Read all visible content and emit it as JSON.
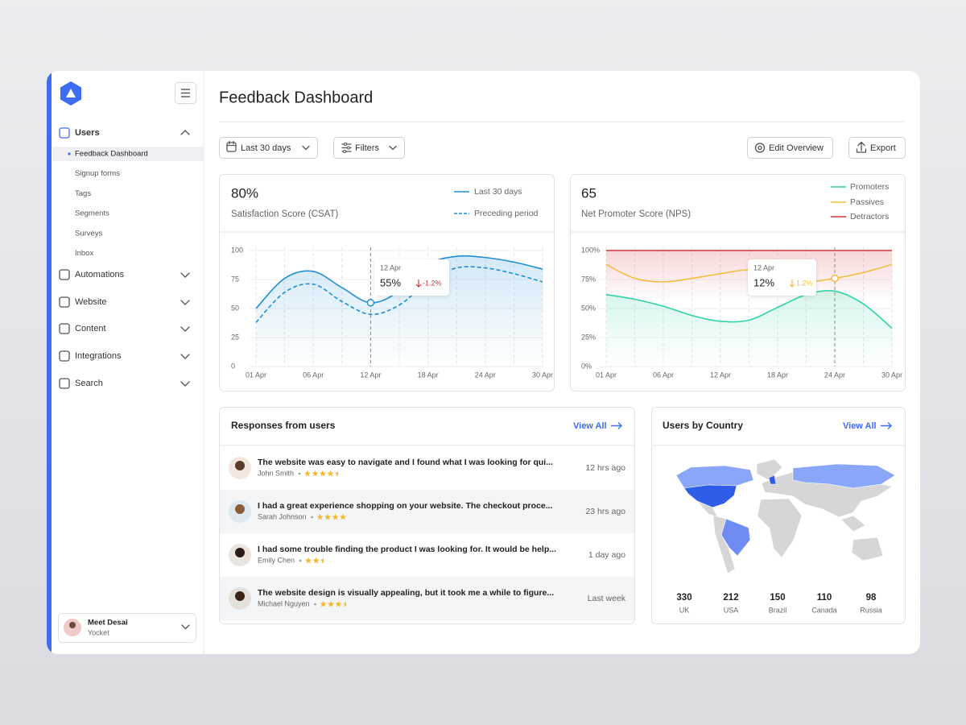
{
  "sidebar": {
    "nav": [
      {
        "label": "Users",
        "children": [
          "Feedback Dashboard",
          "Signup forms",
          "Tags",
          "Segments",
          "Surveys",
          "Inbox"
        ]
      },
      {
        "label": "Automations"
      },
      {
        "label": "Website"
      },
      {
        "label": "Content"
      },
      {
        "label": "Integrations"
      },
      {
        "label": "Search"
      }
    ],
    "user": {
      "name": "Meet Desai",
      "org": "Yocket"
    }
  },
  "header": {
    "title": "Feedback Dashboard"
  },
  "toolbar": {
    "date_range": "Last 30 days",
    "filters": "Filters",
    "edit": "Edit Overview",
    "export": "Export"
  },
  "chart_data": [
    {
      "type": "line",
      "kpi": "80%",
      "title": "Satisfaction Score (CSAT)",
      "categories": [
        "01 Apr",
        null,
        "06 Apr",
        null,
        "12 Apr",
        null,
        "18 Apr",
        null,
        "24 Apr",
        null,
        "30 Apr"
      ],
      "series": [
        {
          "name": "Last 30 days",
          "color": "#1f8fd6",
          "style": "solid",
          "fill": "below",
          "values": [
            50,
            76,
            82,
            68,
            55,
            65,
            88,
            95,
            94,
            90,
            84
          ]
        },
        {
          "name": "Preceding period",
          "color": "#1f8fd6",
          "style": "dashed",
          "values": [
            38,
            64,
            71,
            56,
            45,
            53,
            73,
            85,
            85,
            80,
            73
          ]
        }
      ],
      "ylim": [
        0,
        100
      ],
      "yticks": [
        0,
        25,
        50,
        75,
        100
      ],
      "grid": true,
      "tooltip": {
        "date": "12 Apr",
        "value": "55%",
        "change": "-1.2%"
      }
    },
    {
      "type": "line",
      "kpi": "65",
      "title": "Net Promoter Score (NPS)",
      "categories": [
        "01 Apr",
        null,
        "06 Apr",
        null,
        "12 Apr",
        null,
        "18 Apr",
        null,
        "24 Apr",
        null,
        "30 Apr"
      ],
      "series": [
        {
          "name": "Promoters",
          "color": "#2fd3a6",
          "style": "solid",
          "fill": "below",
          "values": [
            62,
            58,
            52,
            44,
            39,
            40,
            51,
            62,
            65,
            54,
            33
          ]
        },
        {
          "name": "Passives",
          "color": "#f0be42",
          "style": "solid",
          "values": [
            88,
            76,
            73,
            76,
            80,
            83,
            76,
            73,
            76,
            81,
            88
          ]
        },
        {
          "name": "Detractors",
          "color": "#d8343a",
          "style": "solid",
          "fill": "below",
          "values": [
            100,
            100,
            100,
            100,
            100,
            100,
            100,
            100,
            100,
            100,
            100
          ]
        }
      ],
      "ylim": [
        0,
        100
      ],
      "yticks": [
        {
          "value": 0,
          "label": "0%"
        },
        {
          "value": 25,
          "label": "25%"
        },
        {
          "value": 50,
          "label": "50%"
        },
        {
          "value": 75,
          "label": "75%"
        },
        {
          "value": 100,
          "label": "100%"
        }
      ],
      "grid": true,
      "tooltip": {
        "date": "12 Apr",
        "value": "12%",
        "change": "1.2%"
      }
    }
  ],
  "responses": {
    "title": "Responses from users",
    "view_all": "View All",
    "items": [
      {
        "text": "The website was easy to navigate and I found what I was looking for qui...",
        "name": "John Smith",
        "rating": 4.5,
        "time": "12 hrs ago"
      },
      {
        "text": "I had a great experience shopping on your website. The checkout proce...",
        "name": "Sarah Johnson",
        "rating": 4,
        "time": "23 hrs ago"
      },
      {
        "text": "I had some trouble finding the product I was looking for. It would be help...",
        "name": "Emily Chen",
        "rating": 2.5,
        "time": "1 day ago"
      },
      {
        "text": "The website design is visually appealing, but it took me a while to figure...",
        "name": "Michael Nguyen",
        "rating": 3.5,
        "time": "Last week"
      }
    ]
  },
  "countries": {
    "title": "Users by Country",
    "view_all": "View All",
    "items": [
      {
        "value": 330,
        "label": "UK"
      },
      {
        "value": 212,
        "label": "USA"
      },
      {
        "value": 150,
        "label": "Brazil"
      },
      {
        "value": 110,
        "label": "Canada"
      },
      {
        "value": 98,
        "label": "Russia"
      }
    ]
  }
}
